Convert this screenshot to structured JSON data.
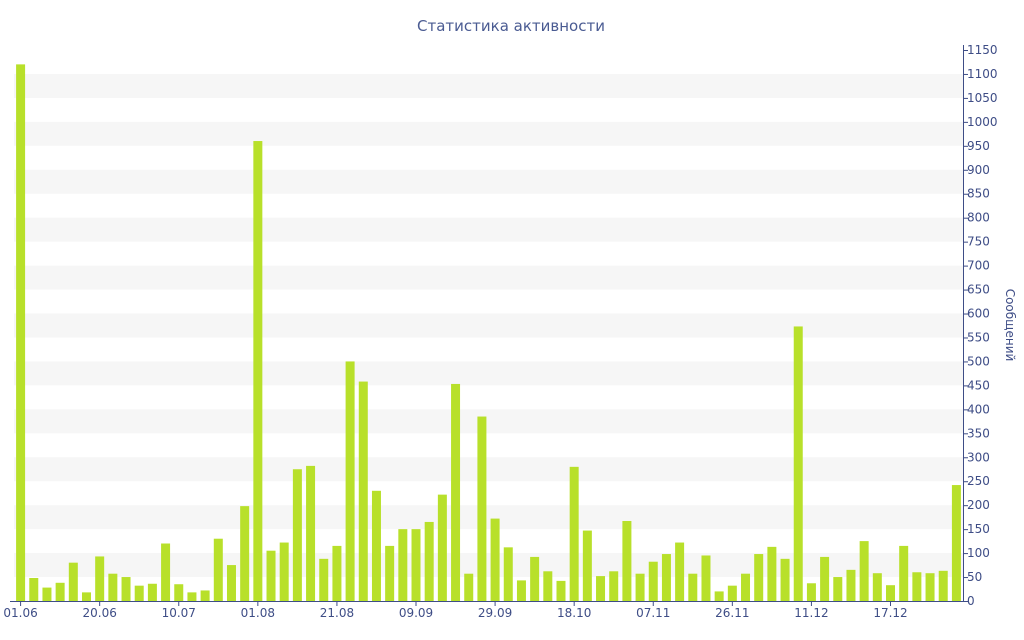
{
  "chart_data": {
    "type": "bar",
    "title": "Статистика активности",
    "xlabel": "",
    "ylabel": "Сообщений",
    "ylim": [
      0,
      1150
    ],
    "y_ticks": [
      0,
      50,
      100,
      150,
      200,
      250,
      300,
      350,
      400,
      450,
      500,
      550,
      600,
      650,
      700,
      750,
      800,
      850,
      900,
      950,
      1000,
      1050,
      1100,
      1150
    ],
    "y_axis_side": "right",
    "x_tick_labels": [
      {
        "index": 0,
        "label": "01.06"
      },
      {
        "index": 6,
        "label": "20.06"
      },
      {
        "index": 12,
        "label": "10.07"
      },
      {
        "index": 18,
        "label": "01.08"
      },
      {
        "index": 24,
        "label": "21.08"
      },
      {
        "index": 30,
        "label": "09.09"
      },
      {
        "index": 36,
        "label": "29.09"
      },
      {
        "index": 42,
        "label": "18.10"
      },
      {
        "index": 48,
        "label": "07.11"
      },
      {
        "index": 54,
        "label": "26.11"
      },
      {
        "index": 60,
        "label": "11.12"
      },
      {
        "index": 66,
        "label": "17.12"
      }
    ],
    "grid": "horizontal bands",
    "colors": {
      "bar": "#b8e02a",
      "band": "#f6f6f6",
      "axis": "#3e4d86",
      "title": "#4a5b92"
    },
    "series": [
      {
        "values": [
          1120,
          48,
          28,
          38,
          80,
          18,
          93,
          57,
          50,
          32,
          36,
          120,
          35,
          18,
          22,
          130,
          75,
          198,
          960,
          105,
          122,
          275,
          282,
          88,
          115,
          500,
          458,
          230,
          115,
          150,
          150,
          165,
          222,
          453,
          57,
          385,
          172,
          112,
          43,
          92,
          62,
          42,
          280,
          147,
          52,
          62,
          167,
          57,
          82,
          98,
          122,
          57,
          95,
          20,
          32,
          57,
          98,
          113,
          88,
          573,
          37,
          92,
          50,
          65,
          125,
          58,
          33,
          115,
          60,
          58,
          63,
          242
        ]
      }
    ]
  }
}
